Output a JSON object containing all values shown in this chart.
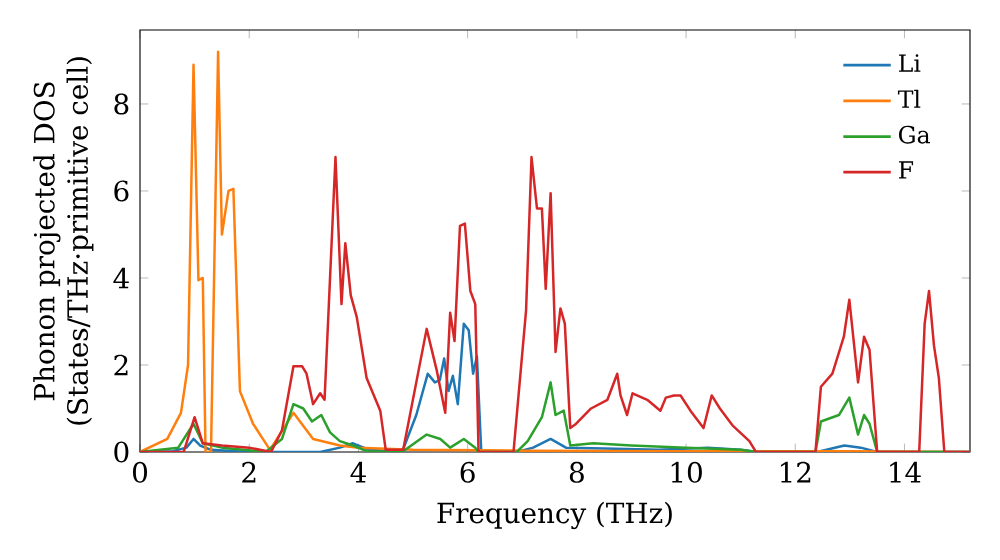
{
  "chart_data": {
    "type": "line",
    "xlabel": "Frequency (THz)",
    "ylabel": "Phonon projected DOS\n(States/THz·primitive cell)",
    "xlim": [
      0,
      15.2
    ],
    "ylim": [
      0,
      9.7
    ],
    "xticks": [
      0,
      2,
      4,
      6,
      8,
      10,
      12,
      14
    ],
    "yticks": [
      0,
      2,
      4,
      6,
      8
    ],
    "legend": "top right",
    "marker": "none",
    "line_style": "solid",
    "grid": false,
    "series": [
      {
        "name": "Li",
        "color": "#1f77b4",
        "x": [
          0,
          0.6,
          0.85,
          0.98,
          1.1,
          1.3,
          2.0,
          3.3,
          3.66,
          3.9,
          4.2,
          4.8,
          5.06,
          5.27,
          5.4,
          5.49,
          5.57,
          5.65,
          5.73,
          5.82,
          5.93,
          6.02,
          6.1,
          6.17,
          6.25,
          6.9,
          7.2,
          7.52,
          7.8,
          8.5,
          9.5,
          10.4,
          11.0,
          11.3,
          12.4,
          12.9,
          13.2,
          13.5,
          15.2
        ],
        "values": [
          0,
          0.02,
          0.1,
          0.3,
          0.15,
          0.05,
          0,
          0,
          0.1,
          0.2,
          0.05,
          0,
          0.85,
          1.8,
          1.6,
          1.65,
          2.15,
          1.4,
          1.75,
          1.1,
          2.95,
          2.8,
          1.8,
          2.2,
          0,
          0,
          0.1,
          0.3,
          0.1,
          0.08,
          0.05,
          0.1,
          0.05,
          0,
          0,
          0.15,
          0.1,
          0,
          0
        ]
      },
      {
        "name": "Tl",
        "color": "#ff7f0e",
        "x": [
          0,
          0.5,
          0.75,
          0.88,
          0.98,
          1.07,
          1.15,
          1.2,
          1.3,
          1.43,
          1.5,
          1.62,
          1.71,
          1.83,
          2.07,
          2.38,
          2.81,
          3.17,
          3.66,
          4.0,
          5.0,
          7.0,
          10.0,
          13.0,
          15.2
        ],
        "values": [
          0,
          0.3,
          0.9,
          2.0,
          8.9,
          3.95,
          4.0,
          0,
          0,
          9.2,
          5.0,
          6.0,
          6.05,
          1.4,
          0.65,
          0.05,
          0.9,
          0.3,
          0.15,
          0.1,
          0.05,
          0.03,
          0.02,
          0.02,
          0
        ]
      },
      {
        "name": "Ga",
        "color": "#2ca02c",
        "x": [
          0,
          0.7,
          0.98,
          1.15,
          1.5,
          2.3,
          2.6,
          2.81,
          2.99,
          3.15,
          3.32,
          3.48,
          3.66,
          3.9,
          4.15,
          4.8,
          5.25,
          5.5,
          5.68,
          5.93,
          6.14,
          6.2,
          6.9,
          7.1,
          7.36,
          7.52,
          7.61,
          7.76,
          7.88,
          8.3,
          9.0,
          10.0,
          11.0,
          11.3,
          12.37,
          12.47,
          12.8,
          12.99,
          13.15,
          13.26,
          13.36,
          13.5,
          15.2
        ],
        "values": [
          0,
          0.1,
          0.65,
          0.2,
          0.1,
          0,
          0.3,
          1.1,
          1.0,
          0.7,
          0.85,
          0.45,
          0.25,
          0.15,
          0.02,
          0,
          0.4,
          0.3,
          0.1,
          0.3,
          0.1,
          0,
          0,
          0.25,
          0.8,
          1.6,
          0.85,
          0.95,
          0.15,
          0.2,
          0.15,
          0.1,
          0.05,
          0,
          0,
          0.7,
          0.85,
          1.25,
          0.4,
          0.85,
          0.65,
          0,
          0
        ]
      },
      {
        "name": "F",
        "color": "#d62728",
        "x": [
          0,
          0.8,
          1.0,
          1.15,
          1.5,
          2.0,
          2.4,
          2.6,
          2.81,
          2.97,
          3.05,
          3.17,
          3.3,
          3.38,
          3.58,
          3.69,
          3.76,
          3.86,
          3.97,
          4.15,
          4.4,
          4.5,
          4.82,
          5.25,
          5.43,
          5.59,
          5.68,
          5.76,
          5.86,
          5.95,
          6.05,
          6.14,
          6.2,
          6.84,
          7.07,
          7.17,
          7.27,
          7.36,
          7.43,
          7.52,
          7.61,
          7.7,
          7.78,
          7.88,
          7.97,
          8.26,
          8.56,
          8.74,
          8.8,
          8.92,
          9.02,
          9.29,
          9.53,
          9.63,
          9.78,
          9.9,
          10.08,
          10.32,
          10.47,
          10.62,
          10.86,
          11.16,
          11.28,
          12.37,
          12.47,
          12.68,
          12.89,
          12.99,
          13.15,
          13.26,
          13.36,
          13.5,
          14.27,
          14.37,
          14.45,
          14.54,
          14.63,
          14.73,
          15.2
        ],
        "values": [
          0,
          0,
          0.8,
          0.2,
          0.15,
          0.1,
          0,
          0.5,
          1.97,
          1.97,
          1.8,
          1.1,
          1.35,
          1.2,
          6.78,
          3.4,
          4.8,
          3.6,
          3.1,
          1.7,
          0.95,
          0.05,
          0.05,
          2.83,
          1.9,
          0.9,
          3.2,
          2.55,
          5.2,
          5.25,
          3.7,
          3.4,
          0,
          0,
          3.25,
          6.78,
          5.6,
          5.6,
          3.75,
          5.95,
          2.3,
          3.3,
          2.95,
          0.55,
          0.63,
          1.0,
          1.2,
          1.8,
          1.3,
          0.85,
          1.35,
          1.2,
          0.95,
          1.25,
          1.3,
          1.3,
          0.95,
          0.55,
          1.3,
          1.0,
          0.6,
          0.25,
          0,
          0,
          1.5,
          1.8,
          2.65,
          3.5,
          1.6,
          2.65,
          2.35,
          0,
          0,
          2.95,
          3.7,
          2.45,
          1.7,
          0,
          0
        ]
      }
    ]
  }
}
